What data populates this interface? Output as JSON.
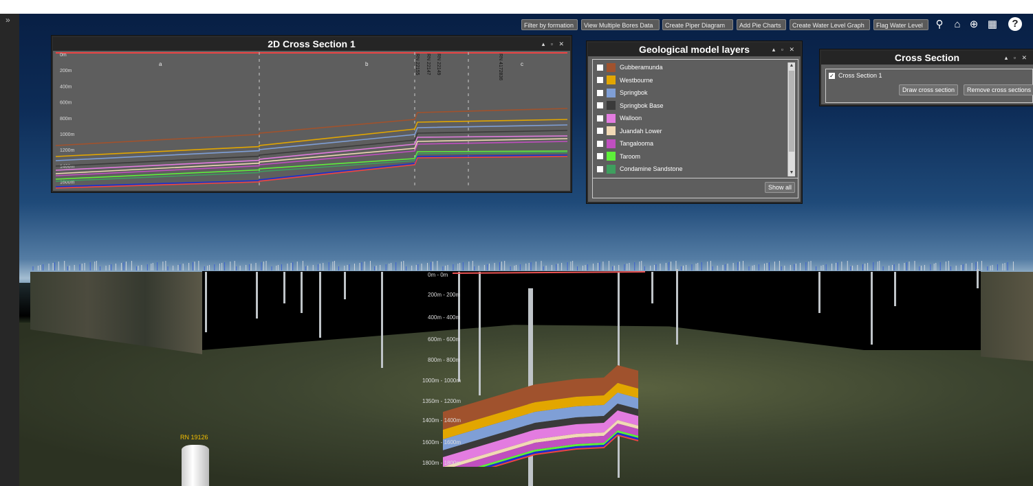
{
  "left_rail": {
    "toggle_glyph": "»"
  },
  "toolbar": {
    "buttons": [
      "Filter by formation",
      "View Multiple Bores Data",
      "Create Piper Diagram",
      "Add Pie Charts",
      "Create Water Level Graph",
      "Flag Water Level"
    ],
    "icons": [
      "search-icon",
      "home-icon",
      "globe-icon",
      "basemap-icon",
      "help-icon"
    ],
    "icon_glyphs": [
      "⚲",
      "⌂",
      "⊕",
      "▦",
      "?"
    ]
  },
  "cross_section_panel": {
    "title": "2D Cross Section 1",
    "controls": "▴ ▫ ✕",
    "depth_ticks": [
      "0m",
      "200m",
      "400m",
      "600m",
      "800m",
      "1000m",
      "1200m",
      "1400m",
      "1600m"
    ],
    "segment_labels": [
      "a",
      "b",
      "c"
    ],
    "bore_labels": [
      "RN 22155",
      "RN 22147",
      "RN 22149",
      "RN 4172836"
    ]
  },
  "layers_panel": {
    "title": "Geological model layers",
    "controls": "▴ ▫ ✕",
    "layers": [
      {
        "name": "Gubberamunda",
        "color": "#a0522d"
      },
      {
        "name": "Westbourne",
        "color": "#e2a600"
      },
      {
        "name": "Springbok",
        "color": "#7f9fd6"
      },
      {
        "name": "Springbok Base",
        "color": "#3a3a3a"
      },
      {
        "name": "Walloon",
        "color": "#e37ce0"
      },
      {
        "name": "Juandah Lower",
        "color": "#f1d9b5"
      },
      {
        "name": "Tangalooma",
        "color": "#c04fc0"
      },
      {
        "name": "Taroom",
        "color": "#5ef03a"
      },
      {
        "name": "Condamine Sandstone",
        "color": "#3e9f5e"
      }
    ],
    "show_all_label": "Show all"
  },
  "cross_section_list_panel": {
    "title": "Cross Section",
    "controls": "▴ ▫ ✕",
    "items": [
      "Cross Section 1"
    ],
    "draw_label": "Draw cross section",
    "remove_label": "Remove cross sections"
  },
  "scene": {
    "bore_tag": "RN 19126",
    "depth_labels": [
      "0m - 0m",
      "200m - 200m",
      "400m - 400m",
      "600m - 600m",
      "800m - 800m",
      "1000m - 1000m",
      "1350m - 1200m",
      "1400m - 1400m",
      "1600m - 1600m",
      "1800m - 1800m"
    ]
  }
}
